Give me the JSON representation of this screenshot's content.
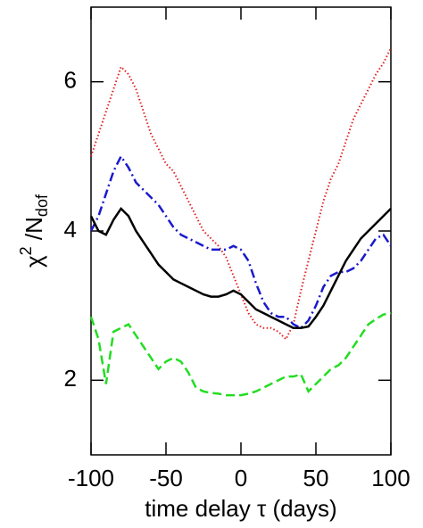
{
  "chart_data": {
    "type": "line",
    "x_label": "time delay τ (days)",
    "y_label": {
      "base": "χ",
      "sup": "2",
      "mid": " /N",
      "sub": "dof"
    },
    "x": [
      -100,
      -95,
      -90,
      -85,
      -80,
      -75,
      -70,
      -65,
      -60,
      -55,
      -50,
      -45,
      -40,
      -35,
      -30,
      -25,
      -20,
      -15,
      -10,
      -5,
      0,
      5,
      10,
      15,
      20,
      25,
      30,
      35,
      40,
      45,
      50,
      55,
      60,
      65,
      70,
      75,
      80,
      85,
      90,
      95,
      100
    ],
    "series": [
      {
        "color": "#e02020",
        "dash": "dotted",
        "values": [
          5.0,
          5.3,
          5.6,
          5.9,
          6.2,
          6.1,
          5.9,
          5.6,
          5.3,
          5.1,
          4.9,
          4.8,
          4.6,
          4.4,
          4.2,
          4.0,
          3.9,
          3.8,
          3.65,
          3.4,
          3.15,
          2.9,
          2.75,
          2.7,
          2.7,
          2.65,
          2.55,
          2.75,
          3.2,
          3.6,
          4.0,
          4.4,
          4.7,
          4.9,
          5.2,
          5.5,
          5.7,
          5.9,
          6.1,
          6.25,
          6.45
        ]
      },
      {
        "color": "#1a1acc",
        "dash": "dashdot",
        "values": [
          4.0,
          4.2,
          4.5,
          4.8,
          5.0,
          4.85,
          4.65,
          4.55,
          4.45,
          4.35,
          4.2,
          4.05,
          3.95,
          3.9,
          3.85,
          3.8,
          3.75,
          3.75,
          3.75,
          3.8,
          3.75,
          3.6,
          3.3,
          3.05,
          2.9,
          2.85,
          2.85,
          2.75,
          2.7,
          2.8,
          3.0,
          3.25,
          3.4,
          3.45,
          3.45,
          3.5,
          3.6,
          3.75,
          3.9,
          3.95,
          3.8
        ]
      },
      {
        "color": "#000000",
        "dash": "solid",
        "values": [
          4.2,
          4.0,
          3.95,
          4.15,
          4.3,
          4.2,
          4.0,
          3.85,
          3.7,
          3.55,
          3.45,
          3.35,
          3.3,
          3.25,
          3.2,
          3.15,
          3.12,
          3.12,
          3.15,
          3.2,
          3.15,
          3.05,
          2.95,
          2.9,
          2.85,
          2.8,
          2.75,
          2.7,
          2.7,
          2.72,
          2.85,
          3.0,
          3.2,
          3.4,
          3.6,
          3.75,
          3.9,
          4.0,
          4.1,
          4.2,
          4.3
        ]
      },
      {
        "color": "#22dd22",
        "dash": "dashed",
        "values": [
          2.85,
          2.55,
          1.95,
          2.65,
          2.7,
          2.75,
          2.6,
          2.45,
          2.3,
          2.15,
          2.25,
          2.3,
          2.25,
          2.1,
          1.9,
          1.85,
          1.83,
          1.82,
          1.8,
          1.8,
          1.8,
          1.82,
          1.85,
          1.9,
          1.95,
          2.0,
          2.05,
          2.05,
          2.08,
          1.85,
          1.95,
          2.05,
          2.15,
          2.2,
          2.3,
          2.45,
          2.6,
          2.75,
          2.82,
          2.88,
          2.9
        ]
      }
    ],
    "xlim": [
      -100,
      100
    ],
    "xticks": [
      -100,
      -50,
      0,
      50,
      100
    ],
    "ylim": [
      1,
      7
    ],
    "yticks": [
      2,
      4,
      6
    ]
  }
}
